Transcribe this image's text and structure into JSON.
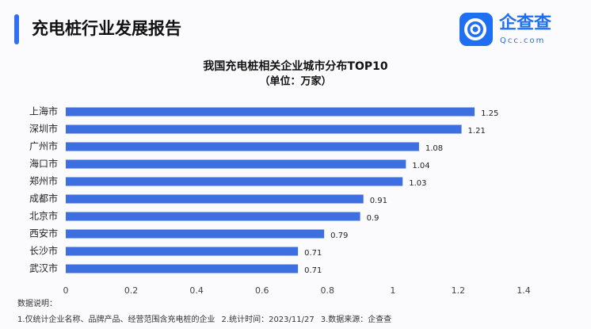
{
  "header": {
    "title": "充电桩行业发展报告",
    "logo": "企查查",
    "logo_sub": "Qcc.com"
  },
  "chart_data": {
    "type": "bar",
    "orientation": "horizontal",
    "title": "我国充电桩相关企业城市分布TOP10",
    "subtitle": "（单位：万家）",
    "categories": [
      "上海市",
      "深圳市",
      "广州市",
      "海口市",
      "郑州市",
      "成都市",
      "北京市",
      "西安市",
      "长沙市",
      "武汉市"
    ],
    "values": [
      1.25,
      1.21,
      1.08,
      1.04,
      1.03,
      0.91,
      0.9,
      0.79,
      0.71,
      0.71
    ],
    "color": "#3d6fe0",
    "xlim": [
      0,
      1.4
    ],
    "xticks": [
      0,
      0.2,
      0.4,
      0.6,
      0.8,
      1,
      1.2,
      1.4
    ],
    "grid": false
  },
  "notes": {
    "label": "数据说明：",
    "items": [
      "1.仅统计企业名称、品牌产品、经营范围含充电桩的企业",
      "2.统计时间：2023/11/27",
      "3.数据来源：企查查"
    ]
  }
}
